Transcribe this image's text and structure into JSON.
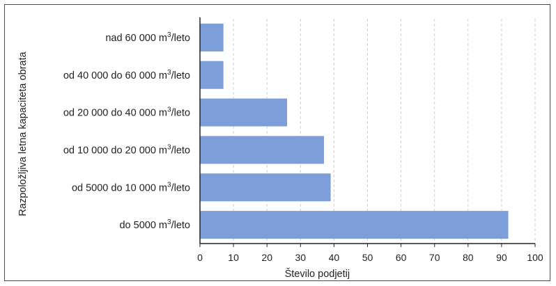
{
  "chart_data": {
    "type": "bar",
    "orientation": "horizontal",
    "title": "",
    "xlabel": "Število podjetij",
    "ylabel": "Razpoložljiva letna kapaciteta obrata",
    "categories": [
      "nad 60 000 m3/leto",
      "od 40 000 do 60 000 m3/leto",
      "od 20 000 do 40 000 m3/leto",
      "od 10 000 do 20 000 m3/leto",
      "od 5000 do 10 000 m3/leto",
      "do 5000 m3/leto"
    ],
    "category_parts": [
      {
        "prefix": "nad 60 000 m",
        "sup": "3",
        "suffix": "/leto"
      },
      {
        "prefix": "od 40 000 do 60 000 m",
        "sup": "3",
        "suffix": "/leto"
      },
      {
        "prefix": "od 20 000 do 40 000 m",
        "sup": "3",
        "suffix": "/leto"
      },
      {
        "prefix": "od 10 000 do 20 000 m",
        "sup": "3",
        "suffix": "/leto"
      },
      {
        "prefix": "od 5000 do 10 000 m",
        "sup": "3",
        "suffix": "/leto"
      },
      {
        "prefix": "do 5000 m",
        "sup": "3",
        "suffix": "/leto"
      }
    ],
    "values": [
      7,
      7,
      26,
      37,
      39,
      92
    ],
    "xlim": [
      0,
      100
    ],
    "xticks": [
      "0",
      "10",
      "20",
      "30",
      "40",
      "50",
      "60",
      "70",
      "80",
      "90",
      "100"
    ],
    "grid": "vertical dashed",
    "legend": "none",
    "bar_color": "#7e9ed9"
  }
}
